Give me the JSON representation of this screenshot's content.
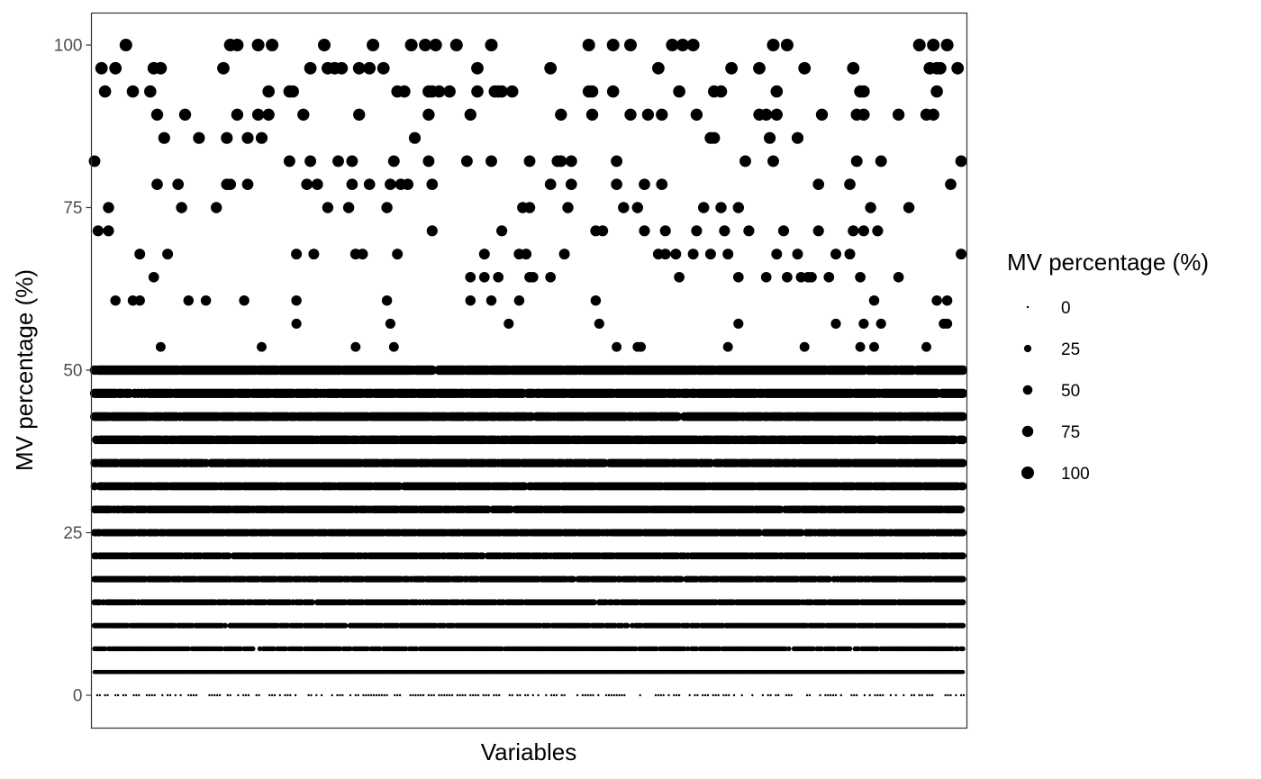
{
  "chart_data": {
    "type": "scatter",
    "title": "",
    "xlabel": "Variables",
    "ylabel": "MV percentage (%)",
    "ylim": [
      -5,
      105
    ],
    "y_ticks": [
      0,
      25,
      50,
      75,
      100
    ],
    "y_tick_labels": [
      "0",
      "25",
      "50",
      "75",
      "100"
    ],
    "x_ticks_shown": false,
    "grid": false,
    "point_color": "#000000",
    "panel_border_color": "#333333",
    "size_encoding": "MV percentage (%)",
    "legend": {
      "position": "right",
      "title": "MV percentage (%)",
      "entries": [
        {
          "label": "0",
          "value": 0
        },
        {
          "label": "25",
          "value": 25
        },
        {
          "label": "50",
          "value": 50
        },
        {
          "label": "75",
          "value": 75
        },
        {
          "label": "100",
          "value": 100
        }
      ]
    },
    "num_variables": 1000,
    "dense_levels": [
      3.57,
      7.14,
      10.71,
      14.29,
      17.86,
      21.43,
      25.0,
      28.57,
      32.14,
      35.71,
      39.29,
      42.86,
      46.43,
      50.0
    ],
    "sparse_levels": [
      0,
      53.57,
      57.14,
      60.71,
      64.29,
      67.86,
      71.43,
      75.0,
      78.57,
      82.14,
      85.71,
      89.29,
      92.86,
      96.43,
      100.0
    ]
  }
}
